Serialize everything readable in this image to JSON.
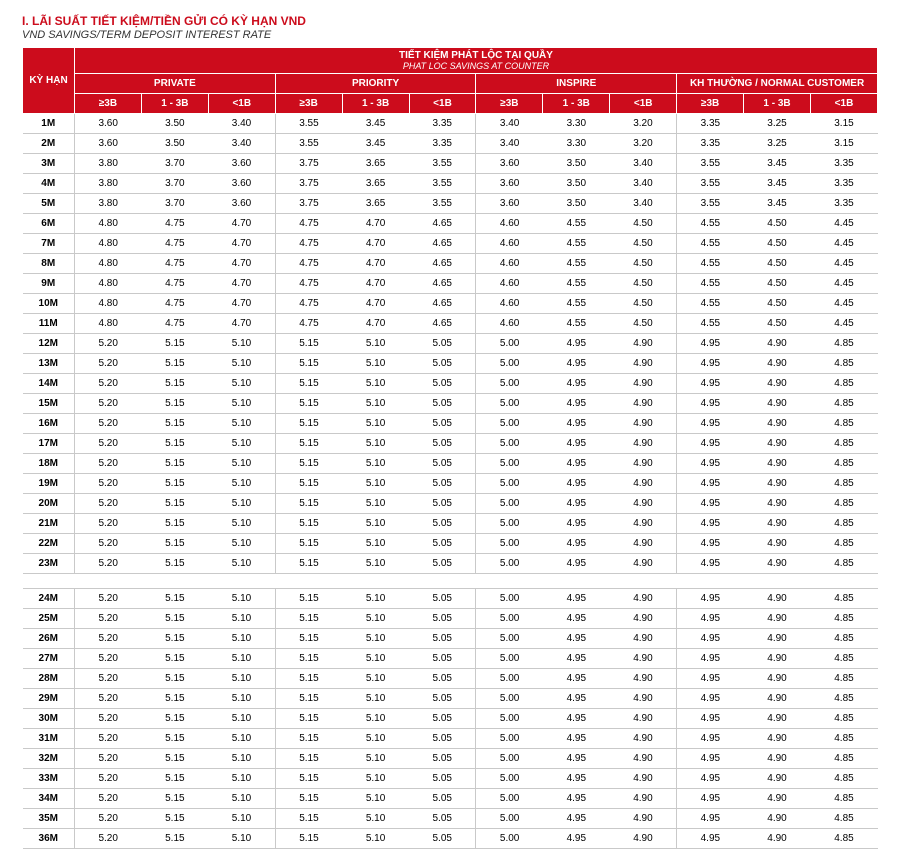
{
  "title": {
    "main": "I. LÃI SUẤT TIẾT KIỆM/TIỀN GỬI CÓ KỲ HẠN VND",
    "sub": "VND SAVINGS/TERM DEPOSIT INTEREST RATE"
  },
  "colors": {
    "header_bg": "#cc0c1c",
    "header_fg": "#ffffff",
    "grid": "#c9c9c9",
    "text": "#000000"
  },
  "header": {
    "term_label": "KỲ HẠN",
    "top_main": "TIẾT KIỆM PHÁT LỘC TẠI QUẦY",
    "top_sub": "PHAT LOC SAVINGS AT COUNTER",
    "groups": [
      "PRIVATE",
      "PRIORITY",
      "INSPIRE",
      "KH THƯỜNG / NORMAL CUSTOMER"
    ],
    "tiers": [
      "≥3B",
      "1 - 3B",
      "<1B"
    ]
  },
  "rows": [
    {
      "term": "1M",
      "v": [
        "3.60",
        "3.50",
        "3.40",
        "3.55",
        "3.45",
        "3.35",
        "3.40",
        "3.30",
        "3.20",
        "3.35",
        "3.25",
        "3.15"
      ]
    },
    {
      "term": "2M",
      "v": [
        "3.60",
        "3.50",
        "3.40",
        "3.55",
        "3.45",
        "3.35",
        "3.40",
        "3.30",
        "3.20",
        "3.35",
        "3.25",
        "3.15"
      ]
    },
    {
      "term": "3M",
      "v": [
        "3.80",
        "3.70",
        "3.60",
        "3.75",
        "3.65",
        "3.55",
        "3.60",
        "3.50",
        "3.40",
        "3.55",
        "3.45",
        "3.35"
      ]
    },
    {
      "term": "4M",
      "v": [
        "3.80",
        "3.70",
        "3.60",
        "3.75",
        "3.65",
        "3.55",
        "3.60",
        "3.50",
        "3.40",
        "3.55",
        "3.45",
        "3.35"
      ]
    },
    {
      "term": "5M",
      "v": [
        "3.80",
        "3.70",
        "3.60",
        "3.75",
        "3.65",
        "3.55",
        "3.60",
        "3.50",
        "3.40",
        "3.55",
        "3.45",
        "3.35"
      ]
    },
    {
      "term": "6M",
      "v": [
        "4.80",
        "4.75",
        "4.70",
        "4.75",
        "4.70",
        "4.65",
        "4.60",
        "4.55",
        "4.50",
        "4.55",
        "4.50",
        "4.45"
      ]
    },
    {
      "term": "7M",
      "v": [
        "4.80",
        "4.75",
        "4.70",
        "4.75",
        "4.70",
        "4.65",
        "4.60",
        "4.55",
        "4.50",
        "4.55",
        "4.50",
        "4.45"
      ]
    },
    {
      "term": "8M",
      "v": [
        "4.80",
        "4.75",
        "4.70",
        "4.75",
        "4.70",
        "4.65",
        "4.60",
        "4.55",
        "4.50",
        "4.55",
        "4.50",
        "4.45"
      ]
    },
    {
      "term": "9M",
      "v": [
        "4.80",
        "4.75",
        "4.70",
        "4.75",
        "4.70",
        "4.65",
        "4.60",
        "4.55",
        "4.50",
        "4.55",
        "4.50",
        "4.45"
      ]
    },
    {
      "term": "10M",
      "v": [
        "4.80",
        "4.75",
        "4.70",
        "4.75",
        "4.70",
        "4.65",
        "4.60",
        "4.55",
        "4.50",
        "4.55",
        "4.50",
        "4.45"
      ]
    },
    {
      "term": "11M",
      "v": [
        "4.80",
        "4.75",
        "4.70",
        "4.75",
        "4.70",
        "4.65",
        "4.60",
        "4.55",
        "4.50",
        "4.55",
        "4.50",
        "4.45"
      ]
    },
    {
      "term": "12M",
      "v": [
        "5.20",
        "5.15",
        "5.10",
        "5.15",
        "5.10",
        "5.05",
        "5.00",
        "4.95",
        "4.90",
        "4.95",
        "4.90",
        "4.85"
      ]
    },
    {
      "term": "13M",
      "v": [
        "5.20",
        "5.15",
        "5.10",
        "5.15",
        "5.10",
        "5.05",
        "5.00",
        "4.95",
        "4.90",
        "4.95",
        "4.90",
        "4.85"
      ]
    },
    {
      "term": "14M",
      "v": [
        "5.20",
        "5.15",
        "5.10",
        "5.15",
        "5.10",
        "5.05",
        "5.00",
        "4.95",
        "4.90",
        "4.95",
        "4.90",
        "4.85"
      ]
    },
    {
      "term": "15M",
      "v": [
        "5.20",
        "5.15",
        "5.10",
        "5.15",
        "5.10",
        "5.05",
        "5.00",
        "4.95",
        "4.90",
        "4.95",
        "4.90",
        "4.85"
      ]
    },
    {
      "term": "16M",
      "v": [
        "5.20",
        "5.15",
        "5.10",
        "5.15",
        "5.10",
        "5.05",
        "5.00",
        "4.95",
        "4.90",
        "4.95",
        "4.90",
        "4.85"
      ]
    },
    {
      "term": "17M",
      "v": [
        "5.20",
        "5.15",
        "5.10",
        "5.15",
        "5.10",
        "5.05",
        "5.00",
        "4.95",
        "4.90",
        "4.95",
        "4.90",
        "4.85"
      ]
    },
    {
      "term": "18M",
      "v": [
        "5.20",
        "5.15",
        "5.10",
        "5.15",
        "5.10",
        "5.05",
        "5.00",
        "4.95",
        "4.90",
        "4.95",
        "4.90",
        "4.85"
      ]
    },
    {
      "term": "19M",
      "v": [
        "5.20",
        "5.15",
        "5.10",
        "5.15",
        "5.10",
        "5.05",
        "5.00",
        "4.95",
        "4.90",
        "4.95",
        "4.90",
        "4.85"
      ]
    },
    {
      "term": "20M",
      "v": [
        "5.20",
        "5.15",
        "5.10",
        "5.15",
        "5.10",
        "5.05",
        "5.00",
        "4.95",
        "4.90",
        "4.95",
        "4.90",
        "4.85"
      ]
    },
    {
      "term": "21M",
      "v": [
        "5.20",
        "5.15",
        "5.10",
        "5.15",
        "5.10",
        "5.05",
        "5.00",
        "4.95",
        "4.90",
        "4.95",
        "4.90",
        "4.85"
      ]
    },
    {
      "term": "22M",
      "v": [
        "5.20",
        "5.15",
        "5.10",
        "5.15",
        "5.10",
        "5.05",
        "5.00",
        "4.95",
        "4.90",
        "4.95",
        "4.90",
        "4.85"
      ]
    },
    {
      "term": "23M",
      "v": [
        "5.20",
        "5.15",
        "5.10",
        "5.15",
        "5.10",
        "5.05",
        "5.00",
        "4.95",
        "4.90",
        "4.95",
        "4.90",
        "4.85"
      ]
    },
    {
      "term": "24M",
      "v": [
        "5.20",
        "5.15",
        "5.10",
        "5.15",
        "5.10",
        "5.05",
        "5.00",
        "4.95",
        "4.90",
        "4.95",
        "4.90",
        "4.85"
      ],
      "gap_before": true
    },
    {
      "term": "25M",
      "v": [
        "5.20",
        "5.15",
        "5.10",
        "5.15",
        "5.10",
        "5.05",
        "5.00",
        "4.95",
        "4.90",
        "4.95",
        "4.90",
        "4.85"
      ]
    },
    {
      "term": "26M",
      "v": [
        "5.20",
        "5.15",
        "5.10",
        "5.15",
        "5.10",
        "5.05",
        "5.00",
        "4.95",
        "4.90",
        "4.95",
        "4.90",
        "4.85"
      ]
    },
    {
      "term": "27M",
      "v": [
        "5.20",
        "5.15",
        "5.10",
        "5.15",
        "5.10",
        "5.05",
        "5.00",
        "4.95",
        "4.90",
        "4.95",
        "4.90",
        "4.85"
      ]
    },
    {
      "term": "28M",
      "v": [
        "5.20",
        "5.15",
        "5.10",
        "5.15",
        "5.10",
        "5.05",
        "5.00",
        "4.95",
        "4.90",
        "4.95",
        "4.90",
        "4.85"
      ]
    },
    {
      "term": "29M",
      "v": [
        "5.20",
        "5.15",
        "5.10",
        "5.15",
        "5.10",
        "5.05",
        "5.00",
        "4.95",
        "4.90",
        "4.95",
        "4.90",
        "4.85"
      ]
    },
    {
      "term": "30M",
      "v": [
        "5.20",
        "5.15",
        "5.10",
        "5.15",
        "5.10",
        "5.05",
        "5.00",
        "4.95",
        "4.90",
        "4.95",
        "4.90",
        "4.85"
      ]
    },
    {
      "term": "31M",
      "v": [
        "5.20",
        "5.15",
        "5.10",
        "5.15",
        "5.10",
        "5.05",
        "5.00",
        "4.95",
        "4.90",
        "4.95",
        "4.90",
        "4.85"
      ]
    },
    {
      "term": "32M",
      "v": [
        "5.20",
        "5.15",
        "5.10",
        "5.15",
        "5.10",
        "5.05",
        "5.00",
        "4.95",
        "4.90",
        "4.95",
        "4.90",
        "4.85"
      ]
    },
    {
      "term": "33M",
      "v": [
        "5.20",
        "5.15",
        "5.10",
        "5.15",
        "5.10",
        "5.05",
        "5.00",
        "4.95",
        "4.90",
        "4.95",
        "4.90",
        "4.85"
      ]
    },
    {
      "term": "34M",
      "v": [
        "5.20",
        "5.15",
        "5.10",
        "5.15",
        "5.10",
        "5.05",
        "5.00",
        "4.95",
        "4.90",
        "4.95",
        "4.90",
        "4.85"
      ]
    },
    {
      "term": "35M",
      "v": [
        "5.20",
        "5.15",
        "5.10",
        "5.15",
        "5.10",
        "5.05",
        "5.00",
        "4.95",
        "4.90",
        "4.95",
        "4.90",
        "4.85"
      ]
    },
    {
      "term": "36M",
      "v": [
        "5.20",
        "5.15",
        "5.10",
        "5.15",
        "5.10",
        "5.05",
        "5.00",
        "4.95",
        "4.90",
        "4.95",
        "4.90",
        "4.85"
      ]
    }
  ]
}
